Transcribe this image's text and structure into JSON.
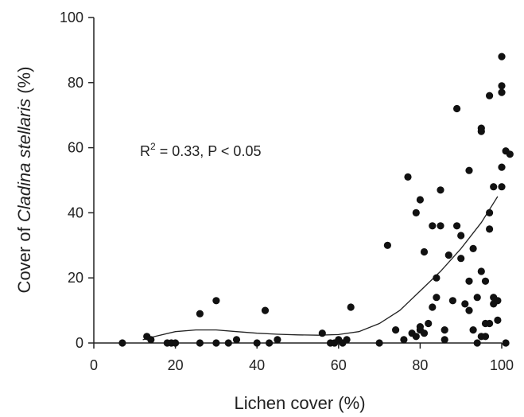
{
  "chart_data": {
    "type": "scatter",
    "xlabel": "Lichen cover (%)",
    "ylabel_prefix": "Cover of ",
    "ylabel_italic": "Cladina stellaris",
    "ylabel_suffix": " (%)",
    "xlim": [
      0,
      100
    ],
    "ylim": [
      0,
      100
    ],
    "xticks": [
      0,
      20,
      40,
      60,
      80,
      100
    ],
    "yticks": [
      0,
      20,
      40,
      60,
      80,
      100
    ],
    "grid": false,
    "annotation": {
      "r_label": "R",
      "r_exponent": "2",
      "text": " = 0.33, P < 0.05"
    },
    "trend_curve": {
      "type": "polynomial-fit",
      "points": [
        [
          12,
          1
        ],
        [
          15,
          2
        ],
        [
          20,
          3.5
        ],
        [
          25,
          4
        ],
        [
          30,
          4
        ],
        [
          35,
          3.5
        ],
        [
          40,
          3
        ],
        [
          45,
          2.7
        ],
        [
          50,
          2.5
        ],
        [
          55,
          2.4
        ],
        [
          60,
          2.6
        ],
        [
          65,
          3.5
        ],
        [
          70,
          6
        ],
        [
          75,
          10
        ],
        [
          80,
          16
        ],
        [
          85,
          22
        ],
        [
          90,
          29
        ],
        [
          95,
          37
        ],
        [
          99,
          45
        ]
      ]
    },
    "points": [
      [
        7,
        0
      ],
      [
        13,
        2
      ],
      [
        14,
        1
      ],
      [
        18,
        0
      ],
      [
        19,
        0
      ],
      [
        20,
        0
      ],
      [
        26,
        0
      ],
      [
        26,
        9
      ],
      [
        30,
        13
      ],
      [
        30,
        0
      ],
      [
        33,
        0
      ],
      [
        35,
        1
      ],
      [
        40,
        0
      ],
      [
        42,
        10
      ],
      [
        43,
        0
      ],
      [
        45,
        1
      ],
      [
        56,
        3
      ],
      [
        58,
        0
      ],
      [
        59,
        0
      ],
      [
        60,
        1
      ],
      [
        61,
        0
      ],
      [
        62,
        1
      ],
      [
        63,
        11
      ],
      [
        70,
        0
      ],
      [
        72,
        30
      ],
      [
        74,
        4
      ],
      [
        76,
        1
      ],
      [
        77,
        51
      ],
      [
        78,
        3
      ],
      [
        79,
        40
      ],
      [
        79,
        2
      ],
      [
        80,
        44
      ],
      [
        80,
        4
      ],
      [
        80,
        5
      ],
      [
        81,
        28
      ],
      [
        81,
        3
      ],
      [
        82,
        6
      ],
      [
        83,
        36
      ],
      [
        83,
        11
      ],
      [
        84,
        14
      ],
      [
        84,
        20
      ],
      [
        85,
        47
      ],
      [
        85,
        36
      ],
      [
        86,
        1
      ],
      [
        86,
        4
      ],
      [
        87,
        27
      ],
      [
        88,
        13
      ],
      [
        89,
        72
      ],
      [
        89,
        36
      ],
      [
        90,
        33
      ],
      [
        90,
        26
      ],
      [
        91,
        12
      ],
      [
        92,
        19
      ],
      [
        92,
        10
      ],
      [
        92,
        53
      ],
      [
        93,
        29
      ],
      [
        93,
        4
      ],
      [
        94,
        0
      ],
      [
        94,
        14
      ],
      [
        95,
        22
      ],
      [
        95,
        2
      ],
      [
        95,
        65
      ],
      [
        95,
        66
      ],
      [
        96,
        6
      ],
      [
        96,
        19
      ],
      [
        96,
        2
      ],
      [
        97,
        40
      ],
      [
        97,
        35
      ],
      [
        97,
        6
      ],
      [
        97,
        76
      ],
      [
        98,
        48
      ],
      [
        98,
        12
      ],
      [
        98,
        14
      ],
      [
        99,
        13
      ],
      [
        99,
        7
      ],
      [
        100,
        48
      ],
      [
        100,
        54
      ],
      [
        100,
        77
      ],
      [
        100,
        79
      ],
      [
        100,
        88
      ],
      [
        101,
        59
      ],
      [
        101,
        0
      ],
      [
        102,
        58
      ]
    ]
  }
}
